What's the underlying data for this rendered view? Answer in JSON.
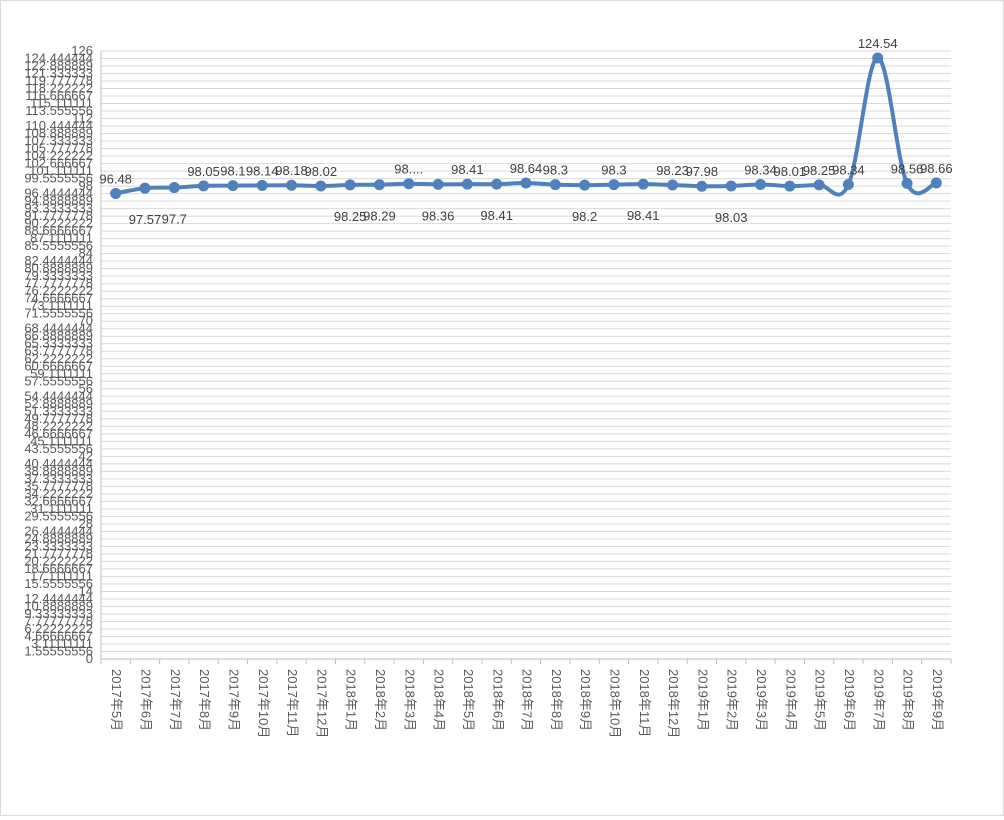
{
  "chart_data": {
    "type": "line",
    "smooth": true,
    "series_color": "#4f81bd",
    "grid": true,
    "grid_color": "#d9d9d9",
    "ylim": [
      0,
      126
    ],
    "y_ticks": [
      "126",
      "124.444444",
      "122.888889",
      "121.333333",
      "119.777778",
      "118.222222",
      "116.666667",
      "115.111111",
      "113.555556",
      "112",
      "110.444444",
      "108.888889",
      "107.333333",
      "105.777778",
      "104.222222",
      "102.666667",
      "101.111111",
      "99.5555556",
      "98",
      "96.4444444",
      "94.8888889",
      "93.3333333",
      "91.7777778",
      "90.2222222",
      "88.6666667",
      "87.1111111",
      "85.5555556",
      "84",
      "82.4444444",
      "80.8888889",
      "79.3333333",
      "77.7777778",
      "76.2222222",
      "74.6666667",
      "73.1111111",
      "71.5555556",
      "70",
      "68.4444444",
      "66.8888889",
      "65.3333333",
      "63.7777778",
      "62.2222222",
      "60.6666667",
      "59.1111111",
      "57.5555556",
      "56",
      "54.4444444",
      "52.8888889",
      "51.3333333",
      "49.7777778",
      "48.2222222",
      "46.6666667",
      "45.1111111",
      "43.5555556",
      "42",
      "40.4444444",
      "38.8888889",
      "37.3333333",
      "35.7777778",
      "34.2222222",
      "32.6666667",
      "31.1111111",
      "29.5555556",
      "28",
      "26.4444444",
      "24.8888889",
      "23.3333333",
      "21.7777778",
      "20.2222222",
      "18.6666667",
      "17.1111111",
      "15.5555556",
      "14",
      "12.4444444",
      "10.8888889",
      "9.33333333",
      "7.77777778",
      "6.22222222",
      "4.66666667",
      "3.11111111",
      "1.55555556",
      "0"
    ],
    "categories": [
      "2017年5月",
      "2017年6月",
      "2017年7月",
      "2017年8月",
      "2017年9月",
      "2017年10月",
      "2017年11月",
      "2017年12月",
      "2018年1月",
      "2018年2月",
      "2018年3月",
      "2018年4月",
      "2018年5月",
      "2018年6月",
      "2018年7月",
      "2018年8月",
      "2018年9月",
      "2018年10月",
      "2018年11月",
      "2018年12月",
      "2019年1月",
      "2019年2月",
      "2019年3月",
      "2019年4月",
      "2019年5月",
      "2019年6月",
      "2019年7月",
      "2019年8月",
      "2019年9月"
    ],
    "values": [
      96.48,
      97.57,
      97.7,
      98.05,
      98.1,
      98.14,
      98.18,
      98.02,
      98.25,
      98.29,
      98.5,
      98.36,
      98.41,
      98.41,
      98.64,
      98.3,
      98.2,
      98.3,
      98.41,
      98.23,
      97.98,
      98.03,
      98.34,
      98.01,
      98.25,
      98.34,
      124.54,
      98.56,
      98.66
    ],
    "data_labels": [
      "96.48",
      "97.57",
      "97.7",
      "98.05",
      "98.1",
      "98.14",
      "98.18",
      "98.02",
      "98.25",
      "98.29",
      "98....",
      "98.36",
      "98.41",
      "98.41",
      "98.64",
      "98.3",
      "98.2",
      "98.3",
      "98.41",
      "98.23",
      "97.98",
      "98.03",
      "98.34",
      "98.01",
      "98.25",
      "98.34",
      "124.54",
      "98.56",
      "98.66"
    ],
    "label_positions": [
      "above",
      "below",
      "below",
      "above",
      "above",
      "above",
      "above",
      "above",
      "below",
      "below",
      "above",
      "below",
      "above",
      "below",
      "above",
      "above",
      "below",
      "above",
      "below",
      "above",
      "above",
      "below",
      "above",
      "above",
      "above",
      "above",
      "above",
      "above",
      "above"
    ]
  }
}
